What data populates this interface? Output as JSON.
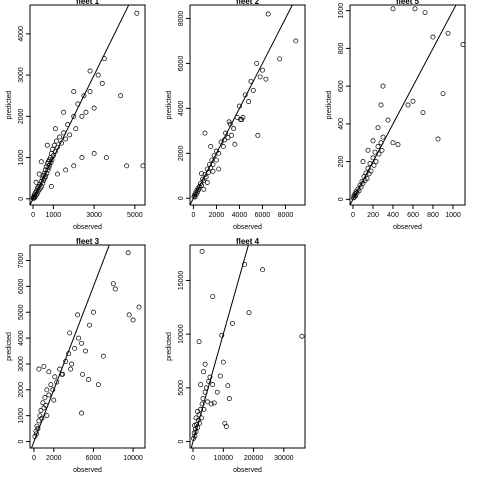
{
  "chart_data": [
    {
      "type": "scatter",
      "title": "fleet 1",
      "xlabel": "observed",
      "ylabel": "predicted",
      "xlim": [
        -150,
        5500
      ],
      "ylim": [
        -150,
        4700
      ],
      "xticks": [
        0,
        1000,
        3000,
        5000
      ],
      "yticks": [
        0,
        1000,
        2000,
        3000,
        4000
      ],
      "reference_line": "y = x",
      "points": [
        [
          5,
          10
        ],
        [
          20,
          30
        ],
        [
          40,
          60
        ],
        [
          60,
          20
        ],
        [
          80,
          110
        ],
        [
          100,
          50
        ],
        [
          120,
          150
        ],
        [
          150,
          90
        ],
        [
          180,
          200
        ],
        [
          200,
          120
        ],
        [
          220,
          260
        ],
        [
          250,
          180
        ],
        [
          280,
          300
        ],
        [
          300,
          220
        ],
        [
          330,
          350
        ],
        [
          360,
          260
        ],
        [
          400,
          420
        ],
        [
          420,
          300
        ],
        [
          450,
          500
        ],
        [
          480,
          380
        ],
        [
          500,
          560
        ],
        [
          520,
          450
        ],
        [
          550,
          620
        ],
        [
          580,
          500
        ],
        [
          600,
          700
        ],
        [
          620,
          550
        ],
        [
          650,
          780
        ],
        [
          680,
          620
        ],
        [
          700,
          850
        ],
        [
          730,
          700
        ],
        [
          750,
          900
        ],
        [
          780,
          760
        ],
        [
          800,
          950
        ],
        [
          820,
          820
        ],
        [
          850,
          1000
        ],
        [
          880,
          880
        ],
        [
          900,
          1100
        ],
        [
          930,
          950
        ],
        [
          960,
          1200
        ],
        [
          1000,
          1050
        ],
        [
          1050,
          1300
        ],
        [
          1100,
          1150
        ],
        [
          1150,
          1400
        ],
        [
          1200,
          1250
        ],
        [
          1300,
          1500
        ],
        [
          1400,
          1350
        ],
        [
          1500,
          1600
        ],
        [
          1600,
          1450
        ],
        [
          1700,
          1800
        ],
        [
          1800,
          1550
        ],
        [
          2000,
          2000
        ],
        [
          2100,
          1700
        ],
        [
          2200,
          2300
        ],
        [
          2400,
          2000
        ],
        [
          2500,
          2500
        ],
        [
          2600,
          2100
        ],
        [
          2800,
          2600
        ],
        [
          3000,
          2200
        ],
        [
          3200,
          3000
        ],
        [
          3400,
          2800
        ],
        [
          900,
          300
        ],
        [
          1200,
          600
        ],
        [
          1600,
          700
        ],
        [
          2000,
          800
        ],
        [
          2400,
          1000
        ],
        [
          3000,
          1100
        ],
        [
          3600,
          1000
        ],
        [
          4600,
          800
        ],
        [
          5400,
          800
        ],
        [
          5100,
          4500
        ],
        [
          4300,
          2500
        ],
        [
          3500,
          3400
        ],
        [
          2800,
          3100
        ],
        [
          2000,
          2600
        ],
        [
          1500,
          2100
        ],
        [
          1100,
          1700
        ],
        [
          700,
          1300
        ],
        [
          400,
          900
        ],
        [
          300,
          600
        ],
        [
          150,
          400
        ]
      ]
    },
    {
      "type": "scatter",
      "title": "fleet 2",
      "xlabel": "observed",
      "ylabel": "predicted",
      "xlim": [
        -300,
        9700
      ],
      "ylim": [
        -300,
        8600
      ],
      "xticks": [
        0,
        2000,
        4000,
        6000,
        8000
      ],
      "yticks": [
        0,
        2000,
        4000,
        6000,
        8000
      ],
      "reference_line": "y = x",
      "points": [
        [
          50,
          80
        ],
        [
          100,
          150
        ],
        [
          150,
          60
        ],
        [
          200,
          250
        ],
        [
          250,
          180
        ],
        [
          300,
          350
        ],
        [
          350,
          280
        ],
        [
          400,
          450
        ],
        [
          450,
          380
        ],
        [
          500,
          520
        ],
        [
          600,
          650
        ],
        [
          700,
          580
        ],
        [
          800,
          850
        ],
        [
          900,
          780
        ],
        [
          1000,
          1050
        ],
        [
          1100,
          950
        ],
        [
          1200,
          1300
        ],
        [
          1300,
          1150
        ],
        [
          1400,
          1500
        ],
        [
          1500,
          1350
        ],
        [
          1600,
          1700
        ],
        [
          1700,
          1500
        ],
        [
          1800,
          1900
        ],
        [
          2000,
          2100
        ],
        [
          2200,
          2000
        ],
        [
          2400,
          2500
        ],
        [
          2600,
          2300
        ],
        [
          2800,
          2900
        ],
        [
          3000,
          2700
        ],
        [
          3200,
          3300
        ],
        [
          3500,
          3100
        ],
        [
          3800,
          3600
        ],
        [
          4000,
          4100
        ],
        [
          4200,
          3500
        ],
        [
          4500,
          4600
        ],
        [
          4800,
          4300
        ],
        [
          5000,
          5200
        ],
        [
          5200,
          4800
        ],
        [
          5500,
          6000
        ],
        [
          5800,
          5400
        ],
        [
          6000,
          5700
        ],
        [
          6300,
          5300
        ],
        [
          6500,
          8200
        ],
        [
          7500,
          6200
        ],
        [
          8900,
          7000
        ],
        [
          1000,
          2900
        ],
        [
          1500,
          2300
        ],
        [
          2200,
          1300
        ],
        [
          3100,
          3400
        ],
        [
          3600,
          2400
        ],
        [
          4300,
          3600
        ],
        [
          5600,
          2800
        ],
        [
          1200,
          700
        ],
        [
          900,
          400
        ],
        [
          700,
          1100
        ],
        [
          2700,
          2600
        ],
        [
          2000,
          1700
        ],
        [
          1700,
          1200
        ],
        [
          3300,
          2800
        ],
        [
          4100,
          3500
        ]
      ]
    },
    {
      "type": "scatter",
      "title": "fleet 5",
      "xlabel": "observed",
      "ylabel": "predicted",
      "xlim": [
        -30,
        1120
      ],
      "ylim": [
        -30,
        1030
      ],
      "xticks": [
        0,
        200,
        400,
        600,
        800,
        1000
      ],
      "yticks": [
        0,
        200,
        400,
        600,
        800,
        1000
      ],
      "reference_line": "y = x",
      "points": [
        [
          5,
          8
        ],
        [
          10,
          20
        ],
        [
          15,
          12
        ],
        [
          20,
          30
        ],
        [
          25,
          18
        ],
        [
          30,
          40
        ],
        [
          40,
          35
        ],
        [
          50,
          55
        ],
        [
          60,
          45
        ],
        [
          70,
          75
        ],
        [
          80,
          65
        ],
        [
          90,
          95
        ],
        [
          100,
          85
        ],
        [
          110,
          120
        ],
        [
          120,
          100
        ],
        [
          130,
          140
        ],
        [
          140,
          110
        ],
        [
          150,
          165
        ],
        [
          160,
          135
        ],
        [
          170,
          190
        ],
        [
          180,
          150
        ],
        [
          200,
          220
        ],
        [
          210,
          180
        ],
        [
          220,
          250
        ],
        [
          230,
          200
        ],
        [
          250,
          280
        ],
        [
          260,
          240
        ],
        [
          280,
          300
        ],
        [
          290,
          260
        ],
        [
          300,
          330
        ],
        [
          100,
          200
        ],
        [
          150,
          260
        ],
        [
          200,
          310
        ],
        [
          250,
          380
        ],
        [
          280,
          500
        ],
        [
          300,
          600
        ],
        [
          350,
          420
        ],
        [
          400,
          300
        ],
        [
          450,
          290
        ],
        [
          550,
          500
        ],
        [
          600,
          520
        ],
        [
          700,
          460
        ],
        [
          800,
          860
        ],
        [
          850,
          320
        ],
        [
          900,
          560
        ],
        [
          950,
          880
        ],
        [
          1100,
          820
        ],
        [
          400,
          1010
        ],
        [
          620,
          1010
        ],
        [
          720,
          990
        ]
      ]
    },
    {
      "type": "scatter",
      "title": "fleet 3",
      "xlabel": "observed",
      "ylabel": "predicted",
      "xlim": [
        -400,
        11200
      ],
      "ylim": [
        -250,
        7600
      ],
      "xticks": [
        0,
        2000,
        6000,
        10000
      ],
      "yticks": [
        0,
        1000,
        2000,
        3000,
        4000,
        5000,
        6000,
        7000
      ],
      "reference_line": "y = x",
      "points": [
        [
          100,
          200
        ],
        [
          200,
          400
        ],
        [
          250,
          300
        ],
        [
          300,
          600
        ],
        [
          400,
          500
        ],
        [
          500,
          800
        ],
        [
          600,
          1000
        ],
        [
          700,
          1200
        ],
        [
          800,
          900
        ],
        [
          900,
          1500
        ],
        [
          1000,
          1300
        ],
        [
          1100,
          1700
        ],
        [
          1200,
          1400
        ],
        [
          1300,
          2000
        ],
        [
          1500,
          1800
        ],
        [
          1700,
          2200
        ],
        [
          1900,
          2000
        ],
        [
          2100,
          2500
        ],
        [
          2300,
          2300
        ],
        [
          2600,
          2800
        ],
        [
          2900,
          2600
        ],
        [
          3200,
          3100
        ],
        [
          3500,
          3400
        ],
        [
          3800,
          3000
        ],
        [
          4100,
          3600
        ],
        [
          4500,
          4000
        ],
        [
          4800,
          3800
        ],
        [
          5200,
          3500
        ],
        [
          5600,
          4500
        ],
        [
          6000,
          5000
        ],
        [
          500,
          2800
        ],
        [
          1000,
          2900
        ],
        [
          1500,
          2700
        ],
        [
          2000,
          1600
        ],
        [
          2800,
          2600
        ],
        [
          3600,
          4200
        ],
        [
          4400,
          4900
        ],
        [
          5500,
          2400
        ],
        [
          6500,
          2200
        ],
        [
          7000,
          3300
        ],
        [
          8000,
          6100
        ],
        [
          8200,
          5900
        ],
        [
          9500,
          7300
        ],
        [
          9600,
          4900
        ],
        [
          10000,
          4700
        ],
        [
          10600,
          5200
        ],
        [
          4800,
          1100
        ],
        [
          4900,
          2600
        ],
        [
          3700,
          2800
        ],
        [
          1300,
          1000
        ]
      ]
    },
    {
      "type": "scatter",
      "title": "fleet 4",
      "xlabel": "observed",
      "ylabel": "predicted",
      "xlim": [
        -1000,
        37000
      ],
      "ylim": [
        -600,
        18300
      ],
      "xticks": [
        0,
        10000,
        20000,
        30000
      ],
      "yticks": [
        0,
        5000,
        10000,
        15000
      ],
      "reference_line": "y = x",
      "points": [
        [
          200,
          300
        ],
        [
          400,
          800
        ],
        [
          600,
          500
        ],
        [
          800,
          1200
        ],
        [
          1000,
          900
        ],
        [
          1200,
          1600
        ],
        [
          1500,
          1300
        ],
        [
          1800,
          2000
        ],
        [
          2000,
          2500
        ],
        [
          2200,
          1700
        ],
        [
          2500,
          3000
        ],
        [
          2800,
          2200
        ],
        [
          3000,
          3500
        ],
        [
          3300,
          4000
        ],
        [
          3600,
          3000
        ],
        [
          4000,
          4600
        ],
        [
          4400,
          5000
        ],
        [
          4800,
          3700
        ],
        [
          5200,
          5600
        ],
        [
          5600,
          6000
        ],
        [
          6000,
          3500
        ],
        [
          6500,
          5300
        ],
        [
          7000,
          3600
        ],
        [
          8000,
          4600
        ],
        [
          9000,
          6100
        ],
        [
          9500,
          9900
        ],
        [
          10000,
          7400
        ],
        [
          10500,
          1700
        ],
        [
          11000,
          1400
        ],
        [
          11500,
          5200
        ],
        [
          12000,
          4000
        ],
        [
          13000,
          11000
        ],
        [
          17000,
          16500
        ],
        [
          18500,
          12000
        ],
        [
          23000,
          16000
        ],
        [
          36000,
          9800
        ],
        [
          3000,
          17700
        ],
        [
          6500,
          13500
        ],
        [
          2000,
          9300
        ],
        [
          4000,
          7200
        ],
        [
          1000,
          2200
        ],
        [
          1500,
          2800
        ],
        [
          500,
          1500
        ],
        [
          2500,
          5300
        ],
        [
          3500,
          6500
        ]
      ]
    }
  ]
}
